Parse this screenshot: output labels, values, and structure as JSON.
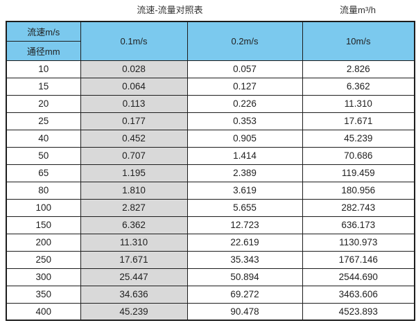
{
  "page": {
    "title": "流速-流量对照表",
    "unit_label": "流量m³/h"
  },
  "colors": {
    "header_blue": "#7bc9ee",
    "header_blue_dark": "#69afd4",
    "col_gray": "#d9d9d9",
    "border_dark": "#1c1c1c",
    "text_dark": "#1f1f1f"
  },
  "chart_data": {
    "type": "table",
    "title": "流速-流量对照表",
    "value_unit": "流量m³/h",
    "corner_header": {
      "top": "流速m/s",
      "bottom": "通径mm"
    },
    "velocity_columns": [
      "0.1m/s",
      "0.2m/s",
      "10m/s"
    ],
    "rows": [
      {
        "diameter": "10",
        "values": [
          "0.028",
          "0.057",
          "2.826"
        ]
      },
      {
        "diameter": "15",
        "values": [
          "0.064",
          "0.127",
          "6.362"
        ]
      },
      {
        "diameter": "20",
        "values": [
          "0.113",
          "0.226",
          "11.310"
        ]
      },
      {
        "diameter": "25",
        "values": [
          "0.177",
          "0.353",
          "17.671"
        ]
      },
      {
        "diameter": "40",
        "values": [
          "0.452",
          "0.905",
          "45.239"
        ]
      },
      {
        "diameter": "50",
        "values": [
          "0.707",
          "1.414",
          "70.686"
        ]
      },
      {
        "diameter": "65",
        "values": [
          "1.195",
          "2.389",
          "119.459"
        ]
      },
      {
        "diameter": "80",
        "values": [
          "1.810",
          "3.619",
          "180.956"
        ]
      },
      {
        "diameter": "100",
        "values": [
          "2.827",
          "5.655",
          "282.743"
        ]
      },
      {
        "diameter": "150",
        "values": [
          "6.362",
          "12.723",
          "636.173"
        ]
      },
      {
        "diameter": "200",
        "values": [
          "11.310",
          "22.619",
          "1130.973"
        ]
      },
      {
        "diameter": "250",
        "values": [
          "17.671",
          "35.343",
          "1767.146"
        ]
      },
      {
        "diameter": "300",
        "values": [
          "25.447",
          "50.894",
          "2544.690"
        ]
      },
      {
        "diameter": "350",
        "values": [
          "34.636",
          "69.272",
          "3463.606"
        ]
      },
      {
        "diameter": "400",
        "values": [
          "45.239",
          "90.478",
          "4523.893"
        ]
      }
    ]
  }
}
